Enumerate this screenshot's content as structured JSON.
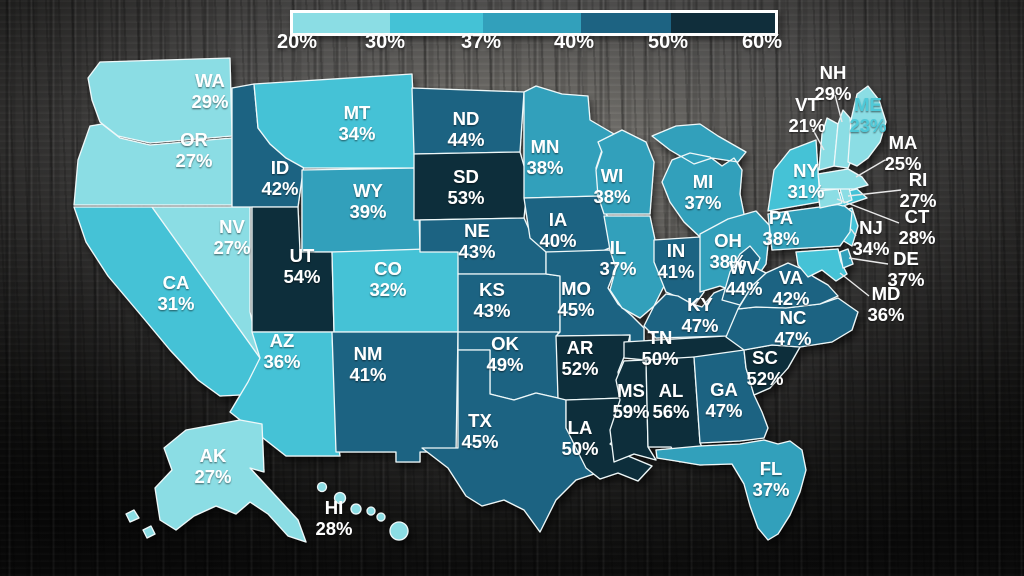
{
  "legend": {
    "ticks": [
      "20%",
      "30%",
      "37%",
      "40%",
      "50%",
      "60%"
    ],
    "thresholds": [
      20,
      30,
      37,
      40,
      50,
      60
    ],
    "bins": [
      {
        "range": "20-30%",
        "color": "#8bdde4"
      },
      {
        "range": "30-37%",
        "color": "#44c2d6"
      },
      {
        "range": "37-40%",
        "color": "#32a0bb"
      },
      {
        "range": "40-50%",
        "color": "#1d6382"
      },
      {
        "range": "50-60%",
        "color": "#102e3b"
      }
    ]
  },
  "map": {
    "unit": "%",
    "label_color_default": "#ffffff",
    "border_color": "#eef8f9"
  },
  "chart_data": {
    "type": "choropleth",
    "region": "United States",
    "unit": "percent",
    "legend_thresholds": [
      20,
      30,
      37,
      40,
      50,
      60
    ],
    "palette": [
      "#8bdde4",
      "#44c2d6",
      "#32a0bb",
      "#1d6382",
      "#102e3b"
    ],
    "states": [
      {
        "abbr": "WA",
        "value": 29
      },
      {
        "abbr": "OR",
        "value": 27
      },
      {
        "abbr": "CA",
        "value": 31
      },
      {
        "abbr": "NV",
        "value": 27
      },
      {
        "abbr": "ID",
        "value": 42
      },
      {
        "abbr": "MT",
        "value": 34
      },
      {
        "abbr": "WY",
        "value": 39
      },
      {
        "abbr": "UT",
        "value": 54
      },
      {
        "abbr": "CO",
        "value": 32
      },
      {
        "abbr": "AZ",
        "value": 36
      },
      {
        "abbr": "NM",
        "value": 41
      },
      {
        "abbr": "ND",
        "value": 44
      },
      {
        "abbr": "SD",
        "value": 53
      },
      {
        "abbr": "NE",
        "value": 43
      },
      {
        "abbr": "KS",
        "value": 43
      },
      {
        "abbr": "OK",
        "value": 49
      },
      {
        "abbr": "TX",
        "value": 45
      },
      {
        "abbr": "MN",
        "value": 38
      },
      {
        "abbr": "IA",
        "value": 40
      },
      {
        "abbr": "MO",
        "value": 45
      },
      {
        "abbr": "AR",
        "value": 52
      },
      {
        "abbr": "LA",
        "value": 50
      },
      {
        "abbr": "WI",
        "value": 38
      },
      {
        "abbr": "IL",
        "value": 37
      },
      {
        "abbr": "MI",
        "value": 37
      },
      {
        "abbr": "IN",
        "value": 41
      },
      {
        "abbr": "OH",
        "value": 38
      },
      {
        "abbr": "KY",
        "value": 47
      },
      {
        "abbr": "TN",
        "value": 50
      },
      {
        "abbr": "MS",
        "value": 59
      },
      {
        "abbr": "AL",
        "value": 56
      },
      {
        "abbr": "GA",
        "value": 47
      },
      {
        "abbr": "FL",
        "value": 37
      },
      {
        "abbr": "SC",
        "value": 52
      },
      {
        "abbr": "NC",
        "value": 47
      },
      {
        "abbr": "VA",
        "value": 42
      },
      {
        "abbr": "WV",
        "value": 44
      },
      {
        "abbr": "KY2",
        "value": null
      },
      {
        "abbr": "MD",
        "value": 36
      },
      {
        "abbr": "DE",
        "value": 37
      },
      {
        "abbr": "NJ",
        "value": 34
      },
      {
        "abbr": "PA",
        "value": 38
      },
      {
        "abbr": "NY",
        "value": 31
      },
      {
        "abbr": "CT",
        "value": 28
      },
      {
        "abbr": "RI",
        "value": 27
      },
      {
        "abbr": "MA",
        "value": 25
      },
      {
        "abbr": "VT",
        "value": 21
      },
      {
        "abbr": "NH",
        "value": 29
      },
      {
        "abbr": "ME",
        "value": 23,
        "label_color": "#4fc9d8"
      },
      {
        "abbr": "AK",
        "value": 27
      },
      {
        "abbr": "HI",
        "value": 28
      }
    ]
  }
}
